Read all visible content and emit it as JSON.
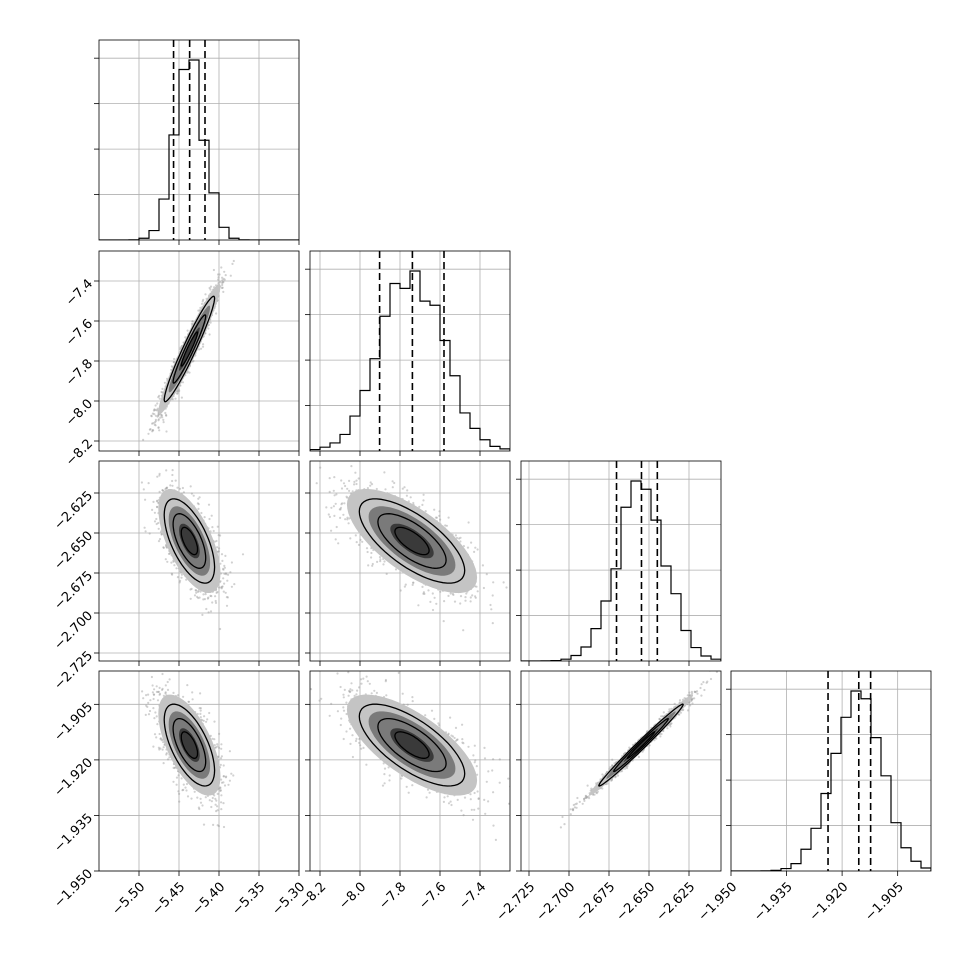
{
  "chart_data": {
    "type": "corner",
    "parameters": [
      {
        "mean": -5.437,
        "sd": 0.0185,
        "q16": -5.4568,
        "q50": -5.4367,
        "q84": -5.4175,
        "xlim": [
          -5.55,
          -5.3
        ],
        "ticks": [
          -5.5,
          -5.45,
          -5.4,
          -5.35,
          -5.3
        ],
        "tick_labels": [
          "−5.50",
          "−5.45",
          "−5.40",
          "−5.35",
          "−5.30"
        ]
      },
      {
        "mean": -7.74,
        "sd": 0.155,
        "q16": -7.902,
        "q50": -7.738,
        "q84": -7.58,
        "xlim": [
          -8.25,
          -7.25
        ],
        "ticks": [
          -8.2,
          -8.0,
          -7.8,
          -7.6,
          -7.4
        ],
        "tick_labels": [
          "−8.2",
          "−8.0",
          "−7.8",
          "−7.6",
          "−7.4"
        ]
      },
      {
        "mean": -2.655,
        "sd": 0.0155,
        "q16": -2.6703,
        "q50": -2.6547,
        "q84": -2.6448,
        "xlim": [
          -2.73,
          -2.605
        ],
        "ticks": [
          -2.725,
          -2.7,
          -2.675,
          -2.65,
          -2.625
        ],
        "tick_labels": [
          "−2.725",
          "−2.700",
          "−2.675",
          "−2.650",
          "−2.625"
        ]
      },
      {
        "mean": -1.916,
        "sd": 0.0065,
        "q16": -1.9238,
        "q50": -1.9155,
        "q84": -1.9123,
        "xlim": [
          -1.95,
          -1.896
        ],
        "ticks": [
          -1.95,
          -1.935,
          -1.92,
          -1.905
        ],
        "tick_labels": [
          "−1.950",
          "−1.935",
          "−1.920",
          "−1.905"
        ]
      }
    ],
    "correlations": [
      [
        1,
        0.96,
        -0.62,
        -0.62
      ],
      [
        0.96,
        1,
        -0.7,
        -0.7
      ],
      [
        -0.62,
        -0.7,
        1,
        0.99
      ],
      [
        -0.62,
        -0.7,
        0.99,
        1
      ]
    ],
    "hist_bins": 20,
    "quantiles": [
      0.16,
      0.5,
      0.84
    ],
    "grid": true
  },
  "colors": {
    "points": "#9a9a9a",
    "lines": "#000000",
    "grid": "#b0b0b0"
  }
}
